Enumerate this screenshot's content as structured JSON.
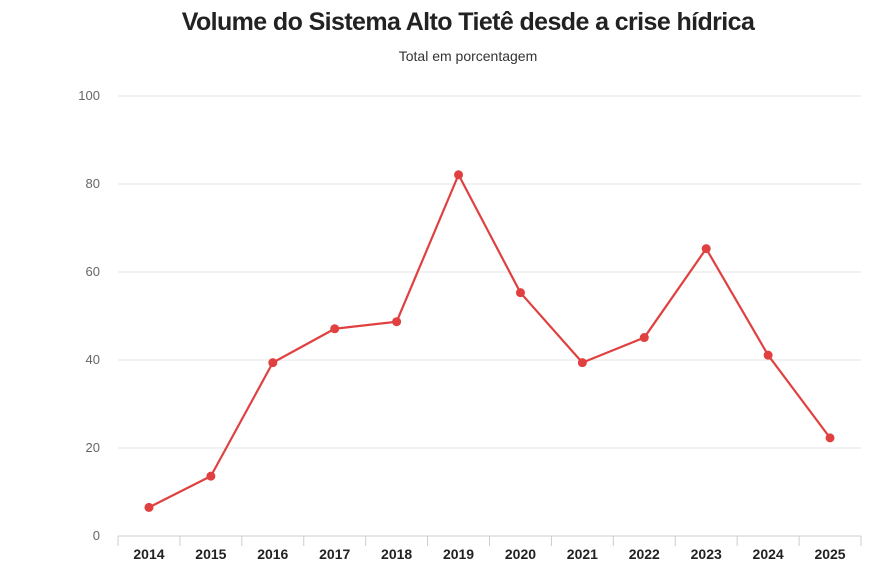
{
  "chart_data": {
    "type": "line",
    "title": "Volume do Sistema Alto Tietê desde a crise hídrica",
    "subtitle": "Total em porcentagem",
    "xlabel": "",
    "ylabel": "",
    "categories": [
      "2014",
      "2015",
      "2016",
      "2017",
      "2018",
      "2019",
      "2020",
      "2021",
      "2022",
      "2023",
      "2024",
      "2025"
    ],
    "series": [
      {
        "values": [
          6.5,
          13.6,
          39.4,
          47.1,
          48.7,
          82.1,
          55.3,
          39.4,
          45.1,
          65.3,
          41.1,
          22.3
        ],
        "color": "#e04040"
      }
    ],
    "ylim": [
      0,
      100
    ],
    "yticks": [
      "0",
      "20",
      "40",
      "60",
      "80",
      "100"
    ],
    "grid": true,
    "legend": "none"
  }
}
